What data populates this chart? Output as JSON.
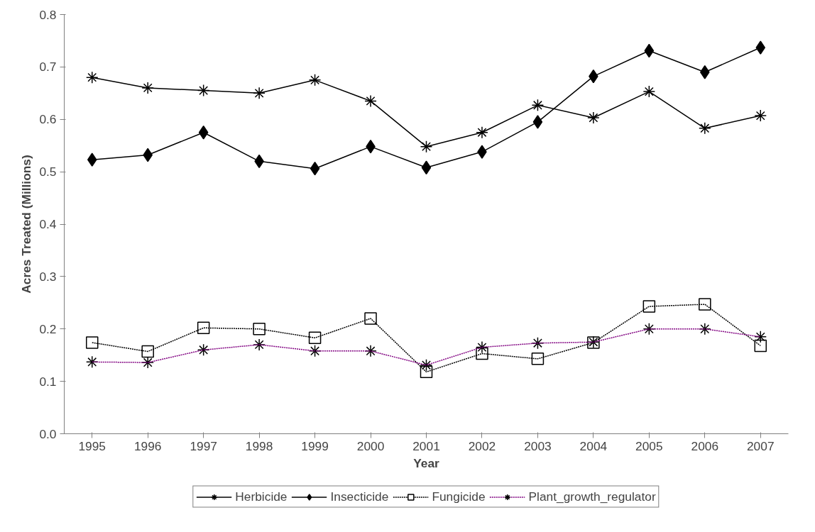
{
  "chart_data": {
    "type": "line",
    "xlabel": "Year",
    "ylabel": "Acres Treated (Millions)",
    "categories": [
      "1995",
      "1996",
      "1997",
      "1998",
      "1999",
      "2000",
      "2001",
      "2002",
      "2003",
      "2004",
      "2005",
      "2006",
      "2007"
    ],
    "ylim": [
      0,
      0.8
    ],
    "yticks": [
      {
        "value": 0,
        "label": "0.0"
      },
      0.1,
      0.2,
      0.3,
      0.4,
      0.5,
      0.6,
      0.7,
      0.8
    ],
    "grid": false,
    "legend": "bottom",
    "series": [
      {
        "name": "Herbicide",
        "color": "#000000",
        "marker": "cross",
        "line_style": "solid",
        "values": [
          0.68,
          0.66,
          0.655,
          0.65,
          0.675,
          0.635,
          0.548,
          0.575,
          0.627,
          0.603,
          0.653,
          0.583,
          0.607
        ]
      },
      {
        "name": "Insecticide",
        "color": "#000000",
        "marker": "diamond",
        "line_style": "solid",
        "values": [
          0.523,
          0.532,
          0.575,
          0.52,
          0.506,
          0.548,
          0.508,
          0.538,
          0.595,
          0.682,
          0.731,
          0.69,
          0.737
        ]
      },
      {
        "name": "Fungicide",
        "color": "#000000",
        "marker": "square",
        "line_style": "dotted",
        "values": [
          0.174,
          0.157,
          0.202,
          0.2,
          0.183,
          0.22,
          0.118,
          0.153,
          0.143,
          0.174,
          0.243,
          0.247,
          0.168
        ]
      },
      {
        "name": "Plant_growth_regulator",
        "color": "#800080",
        "marker": "cross",
        "line_style": "dotted",
        "values": [
          0.137,
          0.136,
          0.16,
          0.17,
          0.158,
          0.158,
          0.131,
          0.165,
          0.173,
          0.175,
          0.2,
          0.2,
          0.185
        ]
      }
    ]
  }
}
